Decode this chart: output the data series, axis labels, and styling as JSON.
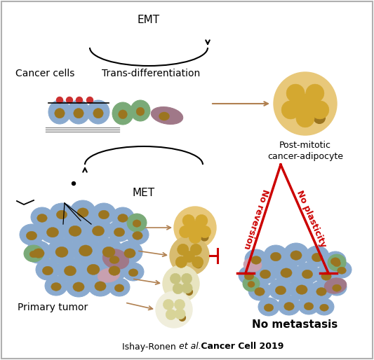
{
  "bg_color": "#ffffff",
  "border_color": "#b0b0b0",
  "emt_label": "EMT",
  "met_label": "MET",
  "trans_diff_label": "Trans-differentiation",
  "cancer_cells_label": "Cancer cells",
  "post_mitotic_label": "Post-mitotic\ncancer-adipocyte",
  "primary_tumor_label": "Primary tumor",
  "no_metastasis_label": "No metastasis",
  "no_reversion_label": "No reversion",
  "no_plasticity_label": "No plasticity",
  "citation_normal": "Ishay-Ronen ",
  "citation_italic": "et al.",
  "citation_bold": " Cancer Cell 2019",
  "cell_blue": "#8aaacf",
  "cell_blue_edge": "#4a6a90",
  "cell_green": "#7aaa78",
  "cell_green_edge": "#3a7a3a",
  "cell_brown": "#9b7520",
  "cell_mauve": "#a07888",
  "cell_mauve_edge": "#705060",
  "cell_pink": "#c8a0b0",
  "cell_lightgreen": "#a8c8a0",
  "cell_red_dot": "#cc3030",
  "adipo_outer": "#e8c87a",
  "adipo_outer_edge": "#c0983a",
  "adipo_inner": "#d4a830",
  "adipo_inner_edge": "#a07820",
  "adipo_medium_outer": "#d8bc70",
  "adipo_medium_inner": "#c09828",
  "adipo_light_outer": "#e8e4c0",
  "adipo_light_inner": "#c8c480",
  "adipo_vlight_outer": "#f0eedc",
  "adipo_vlight_inner": "#d8d498",
  "red_color": "#cc0000",
  "tan_arrow": "#b08050"
}
